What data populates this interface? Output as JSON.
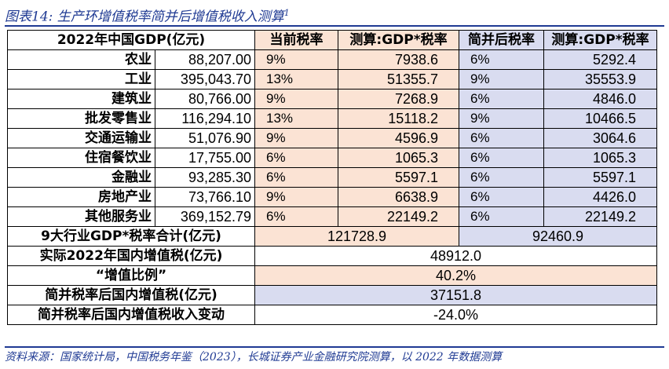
{
  "title": {
    "prefix": "图表14:",
    "text": "生产环增值税率简并后增值税收入测算",
    "superscript": "1"
  },
  "table": {
    "headers": [
      "2022年中国GDP(亿元)",
      "当前税率",
      "测算:GDP*税率",
      "简并后税率",
      "测算:GDP*税率"
    ],
    "rows": [
      {
        "sector": "农业",
        "gdp": "88,207.00",
        "rate": "9%",
        "calc": "7938.6",
        "new_rate": "6%",
        "new_calc": "5292.4"
      },
      {
        "sector": "工业",
        "gdp": "395,043.70",
        "rate": "13%",
        "calc": "51355.7",
        "new_rate": "9%",
        "new_calc": "35553.9"
      },
      {
        "sector": "建筑业",
        "gdp": "80,766.00",
        "rate": "9%",
        "calc": "7268.9",
        "new_rate": "6%",
        "new_calc": "4846.0"
      },
      {
        "sector": "批发零售业",
        "gdp": "116,294.10",
        "rate": "13%",
        "calc": "15118.2",
        "new_rate": "9%",
        "new_calc": "10466.5"
      },
      {
        "sector": "交通运输业",
        "gdp": "51,076.90",
        "rate": "9%",
        "calc": "4596.9",
        "new_rate": "6%",
        "new_calc": "3064.6"
      },
      {
        "sector": "住宿餐饮业",
        "gdp": "17,755.00",
        "rate": "6%",
        "calc": "1065.3",
        "new_rate": "6%",
        "new_calc": "1065.3"
      },
      {
        "sector": "金融业",
        "gdp": "93,285.30",
        "rate": "6%",
        "calc": "5597.1",
        "new_rate": "6%",
        "new_calc": "5597.1"
      },
      {
        "sector": "房地产业",
        "gdp": "73,766.10",
        "rate": "9%",
        "calc": "6638.9",
        "new_rate": "6%",
        "new_calc": "4426.0"
      },
      {
        "sector": "其他服务业",
        "gdp": "369,152.79",
        "rate": "6%",
        "calc": "22149.2",
        "new_rate": "6%",
        "new_calc": "22149.2"
      }
    ],
    "total": {
      "label": "9大行业GDP*税率合计(亿元)",
      "current": "121728.9",
      "new": "92460.9"
    },
    "actual_vat": {
      "label": "实际2022年国内增值税(亿元)",
      "value": "48912.0"
    },
    "ratio": {
      "label": "“增值比例”",
      "value": "40.2%"
    },
    "post_vat": {
      "label": "简并税率后国内增值税(亿元)",
      "value": "37151.8"
    },
    "change": {
      "label": "简并税率后国内增值税收入变动",
      "value": "-24.0%"
    }
  },
  "source": "资料来源：国家统计局，中国税务年鉴（2023），长城证券产业金融研究院测算，以 2022 年数据测算"
}
